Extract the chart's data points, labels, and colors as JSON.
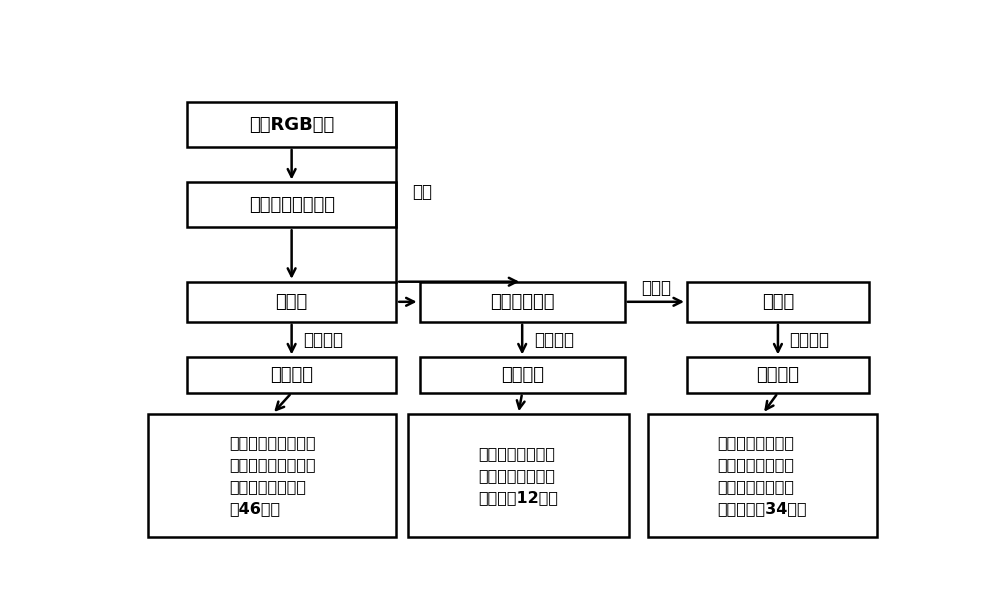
{
  "bg_color": "#ffffff",
  "box_edge_color": "#000000",
  "box_face_color": "#ffffff",
  "text_color": "#000000",
  "lw": 1.8,
  "fs_title": 13,
  "fs_label": 12,
  "fs_detail": 11.5,
  "boxes": {
    "rgb": [
      0.08,
      0.845,
      0.27,
      0.095
    ],
    "model": [
      0.08,
      0.675,
      0.27,
      0.095
    ],
    "binary": [
      0.08,
      0.475,
      0.27,
      0.085
    ],
    "color_map": [
      0.38,
      0.475,
      0.265,
      0.085
    ],
    "gray_map": [
      0.725,
      0.475,
      0.235,
      0.085
    ],
    "morph": [
      0.08,
      0.325,
      0.27,
      0.075
    ],
    "color_param": [
      0.38,
      0.325,
      0.265,
      0.075
    ],
    "texture_param": [
      0.725,
      0.325,
      0.235,
      0.075
    ],
    "morph_detail": [
      0.03,
      0.02,
      0.32,
      0.26
    ],
    "color_detail": [
      0.365,
      0.02,
      0.285,
      0.26
    ],
    "texture_detail": [
      0.675,
      0.02,
      0.295,
      0.26
    ]
  },
  "box_texts": {
    "rgb": "大豆RGB图像",
    "model": "大豆植株分割模型",
    "binary": "二値图",
    "color_map": "精分割彩色图",
    "gray_map": "灰度图",
    "morph": "形态参数",
    "color_param": "颜色参数",
    "texture_param": "纹理参数",
    "morph_detail": "株高、株宽、周长、\n叶面积、凸包面积、\n总投影面积等（共\n计46个）",
    "color_detail": "绿色程度、绿色投\n影面积、绿色比例\n等（共计12个）",
    "texture_detail": "三阶矩、一致性、\n熵、能量、灰度均\n値、灰度熵、梯度\n熵等（共计34个）"
  },
  "label_tejing": "特征提取",
  "label_huidu": "灰度化",
  "label_yanmo": "掩膜"
}
